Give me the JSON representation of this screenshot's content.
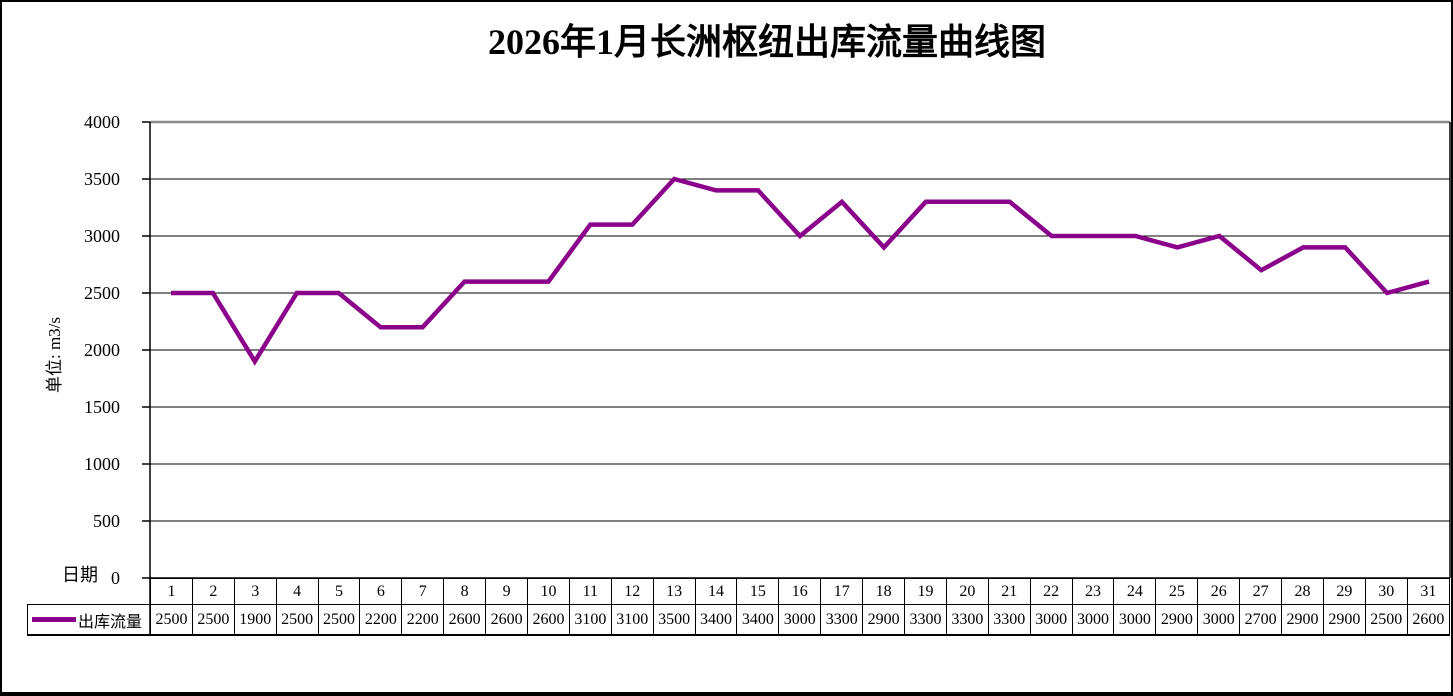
{
  "chart_data": {
    "type": "line",
    "title": "2026年1月长洲枢纽出库流量曲线图",
    "ylabel": "单位: m3/s",
    "xlabel": "日期",
    "categories": [
      "1",
      "2",
      "3",
      "4",
      "5",
      "6",
      "7",
      "8",
      "9",
      "10",
      "11",
      "12",
      "13",
      "14",
      "15",
      "16",
      "17",
      "18",
      "19",
      "20",
      "21",
      "22",
      "23",
      "24",
      "25",
      "26",
      "27",
      "28",
      "29",
      "30",
      "31"
    ],
    "series": [
      {
        "name": "出库流量",
        "color": "#8B008B",
        "values": [
          2500,
          2500,
          1900,
          2500,
          2500,
          2200,
          2200,
          2600,
          2600,
          2600,
          3100,
          3100,
          3500,
          3400,
          3400,
          3000,
          3300,
          2900,
          3300,
          3300,
          3300,
          3000,
          3000,
          3000,
          2900,
          3000,
          2700,
          2900,
          2900,
          2500,
          2600
        ]
      }
    ],
    "ylim": [
      0,
      4000
    ],
    "yticks": [
      0,
      500,
      1000,
      1500,
      2000,
      2500,
      3000,
      3500,
      4000
    ],
    "grid": true,
    "legend_position": "data-table-left",
    "data_table_shown": true,
    "colors": {
      "line": "#8B008B",
      "gridline": "#000000",
      "plot_top_border": "#898989",
      "axis": "#000000",
      "background": "#ffffff"
    }
  }
}
